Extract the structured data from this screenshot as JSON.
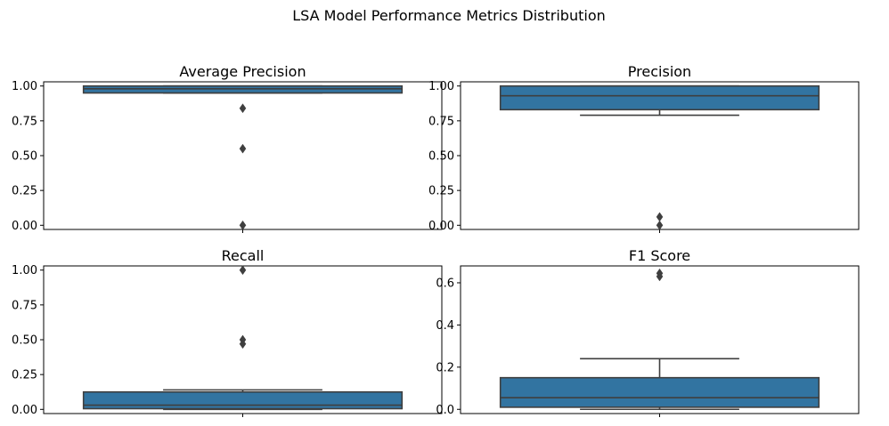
{
  "title": "LSA Model Performance Metrics Distribution",
  "colors": {
    "box_fill": "#3274a1",
    "line": "#3f3f3f",
    "axes": "#000000"
  },
  "chart_data": [
    {
      "type": "box",
      "title": "Average Precision",
      "ylim": [
        -0.03,
        1.03
      ],
      "yticks": [
        "1.00",
        "0.75",
        "0.50",
        "0.25",
        "0.00"
      ],
      "ytick_values": [
        1.0,
        0.75,
        0.5,
        0.25,
        0.0
      ],
      "box": {
        "q1": 0.95,
        "median": 0.98,
        "q3": 1.0,
        "whisker_low": 0.95,
        "whisker_high": 1.0
      },
      "outliers": [
        0.84,
        0.55,
        0.0
      ],
      "grid": false
    },
    {
      "type": "box",
      "title": "Precision",
      "ylim": [
        -0.03,
        1.03
      ],
      "yticks": [
        "1.00",
        "0.75",
        "0.50",
        "0.25",
        "0.00"
      ],
      "ytick_values": [
        1.0,
        0.75,
        0.5,
        0.25,
        0.0
      ],
      "box": {
        "q1": 0.83,
        "median": 0.93,
        "q3": 1.0,
        "whisker_low": 0.79,
        "whisker_high": 1.0
      },
      "outliers": [
        0.06,
        0.0
      ],
      "grid": false
    },
    {
      "type": "box",
      "title": "Recall",
      "ylim": [
        -0.03,
        1.03
      ],
      "yticks": [
        "1.00",
        "0.75",
        "0.50",
        "0.25",
        "0.00"
      ],
      "ytick_values": [
        1.0,
        0.75,
        0.5,
        0.25,
        0.0
      ],
      "box": {
        "q1": 0.005,
        "median": 0.03,
        "q3": 0.125,
        "whisker_low": 0.0,
        "whisker_high": 0.14
      },
      "outliers": [
        1.0,
        0.5,
        0.47
      ],
      "grid": false
    },
    {
      "type": "box",
      "title": "F1 Score",
      "ylim": [
        -0.02,
        0.68
      ],
      "yticks": [
        "0.6",
        "0.4",
        "0.2",
        "0.0"
      ],
      "ytick_values": [
        0.6,
        0.4,
        0.2,
        0.0
      ],
      "box": {
        "q1": 0.01,
        "median": 0.055,
        "q3": 0.15,
        "whisker_low": 0.0,
        "whisker_high": 0.24
      },
      "outliers": [
        0.645,
        0.63
      ],
      "grid": false
    }
  ]
}
